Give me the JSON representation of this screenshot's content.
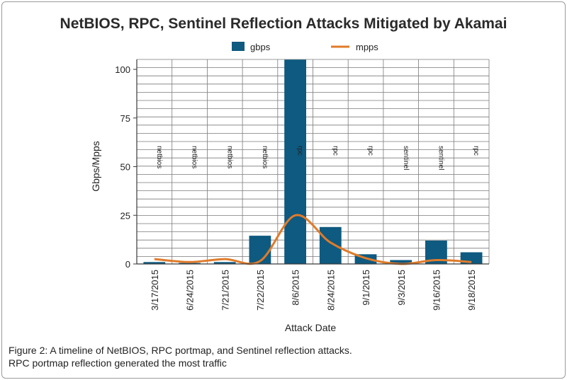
{
  "colors": {
    "bar": "#0e5a80",
    "line": "#e07b2a",
    "grid": "#7a7a7a",
    "axis": "#3a3a3a"
  },
  "chart_data": {
    "type": "bar",
    "title": "NetBIOS, RPC, Sentinel Reflection Attacks Mitigated by Akamai",
    "xlabel": "Attack Date",
    "ylabel": "Gbps/Mpps",
    "ylim": [
      0,
      100
    ],
    "yticks": [
      0,
      25,
      50,
      75,
      100
    ],
    "legend_position": "top",
    "categories": [
      "3/17/2015",
      "6/24/2015",
      "7/21/2015",
      "7/22/2015",
      "8/6/2015",
      "8/24/2015",
      "9/1/2015",
      "9/3/2015",
      "9/16/2015",
      "9/18/2015"
    ],
    "annotations": [
      "netbios",
      "netbios",
      "netbios",
      "netbios",
      "rpc",
      "rpc",
      "rpc",
      "sentinel",
      "sentinel",
      "rpc"
    ],
    "series": [
      {
        "name": "gbps",
        "type": "bar",
        "values": [
          1,
          0.5,
          1,
          14.5,
          105,
          19,
          5,
          2,
          12,
          6
        ]
      },
      {
        "name": "mpps",
        "type": "line",
        "values": [
          2.5,
          1,
          2.5,
          1.5,
          25,
          11,
          3,
          0,
          2,
          1
        ]
      }
    ]
  },
  "caption": {
    "line1": "Figure 2: A timeline of NetBIOS, RPC portmap, and Sentinel reflection attacks.",
    "line2": "RPC portmap reflection generated the most traffic"
  }
}
